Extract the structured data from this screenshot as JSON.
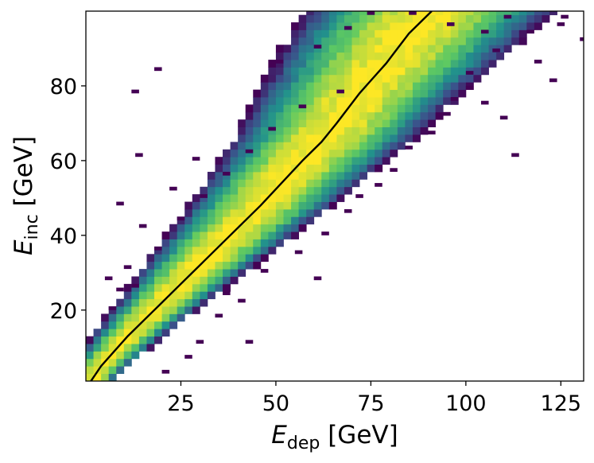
{
  "chart_data": {
    "type": "heatmap",
    "xlabel": {
      "main": "E",
      "sub": "dep",
      "unit": " [GeV]"
    },
    "ylabel": {
      "main": "E",
      "sub": "inc",
      "unit": " [GeV]"
    },
    "xlim": [
      0,
      131
    ],
    "ylim": [
      1,
      100
    ],
    "x_ticks": [
      25,
      50,
      75,
      100,
      125
    ],
    "y_ticks": [
      20,
      40,
      60,
      80
    ],
    "x_tick_labels": [
      "25",
      "50",
      "75",
      "100",
      "125"
    ],
    "y_tick_labels": [
      "20",
      "40",
      "60",
      "80"
    ],
    "bins": {
      "x_width": 2.0,
      "y_height": 2.0
    },
    "colormap": [
      "#440154",
      "#3b528b",
      "#21918c",
      "#5ec962",
      "#fde725"
    ],
    "grid": false,
    "legend": "none",
    "ridge": {
      "x": [
        1.0,
        4.0,
        7.5,
        11.0,
        15.0,
        20.0,
        26.0,
        31.0,
        36.0,
        41.0,
        46.0,
        51.5,
        57.0,
        62.0,
        66.0,
        69.0,
        72.0,
        75.5,
        79.0,
        82.0,
        85.0,
        88.0,
        91.0
      ],
      "y": [
        0.5,
        5.0,
        9.0,
        13.0,
        17.0,
        22.0,
        28.0,
        33.0,
        38.0,
        43.0,
        48.0,
        54.0,
        60.0,
        65.0,
        70.0,
        74.0,
        78.0,
        82.0,
        86.0,
        90.0,
        94.0,
        97.0,
        100.0
      ]
    },
    "ridge_width_factor": 0.09,
    "ridge_width_base": 2.0,
    "outlier_bins": [
      [
        18,
        84
      ],
      [
        12,
        78
      ],
      [
        13,
        61
      ],
      [
        8,
        48
      ],
      [
        104,
        75
      ],
      [
        109,
        71
      ],
      [
        112,
        61
      ],
      [
        122,
        81
      ],
      [
        116,
        94
      ],
      [
        125,
        98
      ],
      [
        132,
        99
      ],
      [
        130,
        92
      ],
      [
        124,
        96
      ],
      [
        118,
        86
      ],
      [
        107,
        89
      ],
      [
        10,
        31
      ],
      [
        5,
        28
      ],
      [
        8,
        25
      ],
      [
        20,
        3
      ],
      [
        29,
        11
      ],
      [
        26,
        7
      ],
      [
        36,
        24
      ],
      [
        40,
        22
      ],
      [
        46,
        30
      ],
      [
        55,
        35
      ],
      [
        62,
        40
      ],
      [
        68,
        46
      ],
      [
        71,
        50
      ],
      [
        76,
        53
      ],
      [
        80,
        57
      ],
      [
        84,
        63
      ],
      [
        90,
        67
      ],
      [
        94,
        72
      ],
      [
        96,
        76
      ],
      [
        100,
        79
      ],
      [
        100,
        83
      ],
      [
        66,
        78
      ],
      [
        56,
        74
      ],
      [
        48,
        68
      ],
      [
        42,
        62
      ],
      [
        36,
        56
      ],
      [
        30,
        50
      ],
      [
        24,
        44
      ],
      [
        18,
        36
      ],
      [
        12,
        26
      ],
      [
        6,
        20
      ],
      [
        50,
        86
      ],
      [
        60,
        90
      ],
      [
        68,
        95
      ],
      [
        74,
        99
      ],
      [
        85,
        99
      ],
      [
        95,
        96
      ],
      [
        104,
        94
      ],
      [
        110,
        98
      ],
      [
        42,
        11
      ],
      [
        60,
        28
      ],
      [
        34,
        18
      ],
      [
        14,
        42
      ],
      [
        22,
        52
      ],
      [
        28,
        60
      ]
    ],
    "mean_line_color": "#000000"
  }
}
